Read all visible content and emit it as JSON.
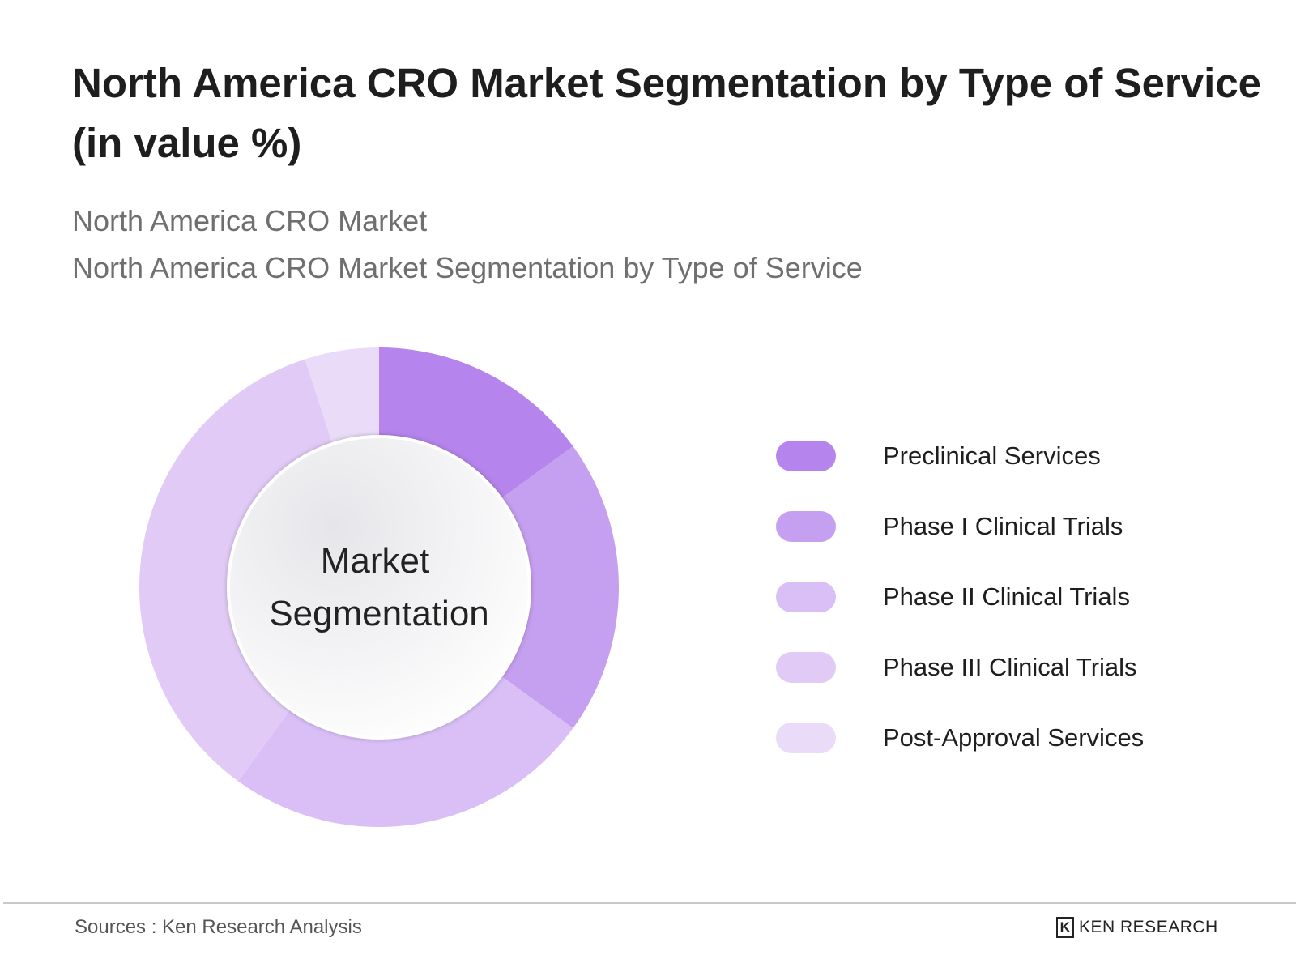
{
  "title": "North America CRO Market Segmentation by Type of Service (in value %)",
  "subtitle1": "North America CRO Market",
  "subtitle2": "North America CRO Market Segmentation by Type of Service",
  "footer": {
    "source": "Sources : Ken Research Analysis",
    "logo": "KEN RESEARCH"
  },
  "chart_data": {
    "type": "pie",
    "variant": "donut",
    "center_label": [
      "Market",
      "Segmentation"
    ],
    "legend_placement": "right",
    "categories": [
      "Preclinical Services",
      "Phase I Clinical Trials",
      "Phase II Clinical Trials",
      "Phase III Clinical Trials",
      "Post-Approval Services"
    ],
    "values": [
      15,
      20,
      25,
      35,
      5
    ],
    "colors": [
      "#b584ec",
      "#c59ff0",
      "#d9bff6",
      "#e1cbf6",
      "#eadcf9"
    ]
  }
}
